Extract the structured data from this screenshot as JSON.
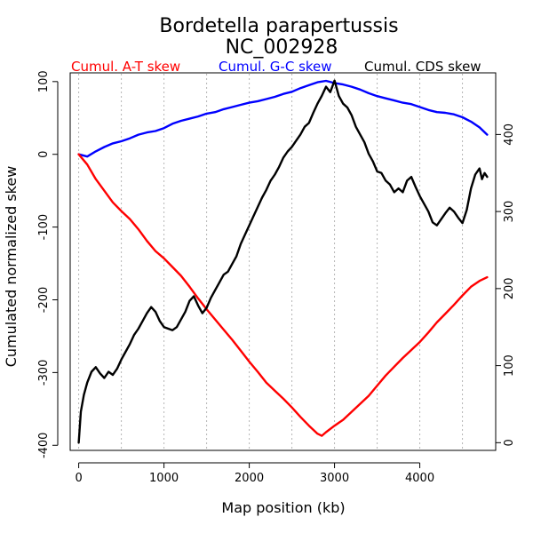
{
  "chart_data": {
    "type": "line",
    "title": "Bordetella parapertussis",
    "subtitle": "NC_002928",
    "xlabel": "Map position (kb)",
    "ylabel": "Cumulated normalized skew",
    "xlim": [
      -100,
      4890
    ],
    "ylim": [
      -407,
      112
    ],
    "y2lim": [
      -10,
      480
    ],
    "x_ticks": [
      0,
      1000,
      2000,
      3000,
      4000
    ],
    "y_ticks": [
      100,
      0,
      -100,
      -200,
      -300,
      -400
    ],
    "y2_ticks": [
      0,
      100,
      200,
      300,
      400
    ],
    "grid": "vertical dotted every 500 kb",
    "grid_x": [
      0,
      500,
      1000,
      1500,
      2000,
      2500,
      3000,
      3500,
      4000,
      4500
    ],
    "legend_placement": "top",
    "series": [
      {
        "name": "Cumul. A-T skew",
        "axis": "left",
        "color": "#ff0000",
        "x": [
          0,
          100,
          200,
          300,
          400,
          500,
          600,
          700,
          800,
          900,
          1000,
          1100,
          1200,
          1300,
          1400,
          1500,
          1600,
          1700,
          1800,
          1900,
          2000,
          2100,
          2200,
          2300,
          2400,
          2500,
          2600,
          2700,
          2800,
          2850,
          2900,
          3000,
          3100,
          3200,
          3300,
          3400,
          3500,
          3600,
          3700,
          3800,
          3900,
          4000,
          4100,
          4200,
          4300,
          4400,
          4500,
          4600,
          4700,
          4790
        ],
        "y": [
          0,
          -14,
          -34,
          -50,
          -66,
          -78,
          -89,
          -103,
          -119,
          -133,
          -143,
          -155,
          -167,
          -182,
          -198,
          -213,
          -227,
          -241,
          -255,
          -270,
          -285,
          -299,
          -314,
          -325,
          -336,
          -348,
          -361,
          -373,
          -384,
          -387,
          -382,
          -373,
          -365,
          -354,
          -343,
          -332,
          -318,
          -304,
          -292,
          -280,
          -269,
          -258,
          -245,
          -231,
          -219,
          -207,
          -194,
          -182,
          -174,
          -169
        ]
      },
      {
        "name": "Cumul. G-C skew",
        "axis": "left",
        "color": "#0000ff",
        "x": [
          0,
          100,
          200,
          300,
          400,
          500,
          600,
          700,
          800,
          900,
          1000,
          1100,
          1200,
          1300,
          1400,
          1500,
          1600,
          1700,
          1800,
          1900,
          2000,
          2100,
          2200,
          2300,
          2400,
          2500,
          2600,
          2700,
          2800,
          2900,
          3000,
          3100,
          3200,
          3300,
          3400,
          3500,
          3600,
          3700,
          3800,
          3900,
          4000,
          4100,
          4200,
          4300,
          4400,
          4500,
          4600,
          4700,
          4790
        ],
        "y": [
          0,
          -3,
          4,
          10,
          15,
          18,
          22,
          27,
          30,
          32,
          36,
          42,
          46,
          49,
          52,
          56,
          58,
          62,
          65,
          68,
          71,
          73,
          76,
          79,
          83,
          86,
          91,
          95,
          99,
          101,
          98,
          96,
          93,
          89,
          84,
          80,
          77,
          74,
          71,
          69,
          65,
          61,
          58,
          57,
          55,
          51,
          45,
          37,
          27
        ]
      },
      {
        "name": "Cumul. CDS skew",
        "axis": "right",
        "color": "#000000",
        "x": [
          0,
          25,
          60,
          100,
          150,
          200,
          250,
          300,
          350,
          400,
          450,
          500,
          550,
          600,
          650,
          700,
          750,
          800,
          850,
          900,
          950,
          1000,
          1050,
          1100,
          1150,
          1200,
          1250,
          1300,
          1350,
          1400,
          1450,
          1500,
          1550,
          1600,
          1650,
          1700,
          1750,
          1800,
          1850,
          1900,
          1950,
          2000,
          2050,
          2100,
          2150,
          2200,
          2250,
          2300,
          2350,
          2400,
          2450,
          2500,
          2550,
          2600,
          2650,
          2700,
          2750,
          2800,
          2850,
          2900,
          2950,
          3000,
          3050,
          3100,
          3150,
          3200,
          3250,
          3300,
          3350,
          3400,
          3450,
          3500,
          3550,
          3600,
          3650,
          3700,
          3750,
          3800,
          3850,
          3900,
          3950,
          4000,
          4050,
          4100,
          4150,
          4200,
          4250,
          4300,
          4350,
          4400,
          4450,
          4500,
          4550,
          4600,
          4650,
          4700,
          4730,
          4760,
          4790
        ],
        "y": [
          0,
          40,
          62,
          78,
          92,
          98,
          90,
          84,
          92,
          88,
          96,
          108,
          118,
          128,
          140,
          148,
          158,
          168,
          176,
          170,
          158,
          150,
          148,
          146,
          150,
          160,
          170,
          184,
          190,
          178,
          168,
          175,
          188,
          198,
          208,
          218,
          222,
          232,
          242,
          258,
          270,
          282,
          294,
          306,
          318,
          328,
          340,
          348,
          358,
          370,
          378,
          384,
          392,
          400,
          410,
          415,
          428,
          440,
          450,
          462,
          455,
          470,
          450,
          440,
          435,
          425,
          410,
          400,
          390,
          375,
          365,
          352,
          350,
          340,
          335,
          325,
          330,
          325,
          340,
          345,
          332,
          320,
          310,
          300,
          286,
          282,
          290,
          298,
          305,
          300,
          292,
          285,
          302,
          330,
          348,
          356,
          342,
          350,
          345
        ]
      }
    ]
  }
}
